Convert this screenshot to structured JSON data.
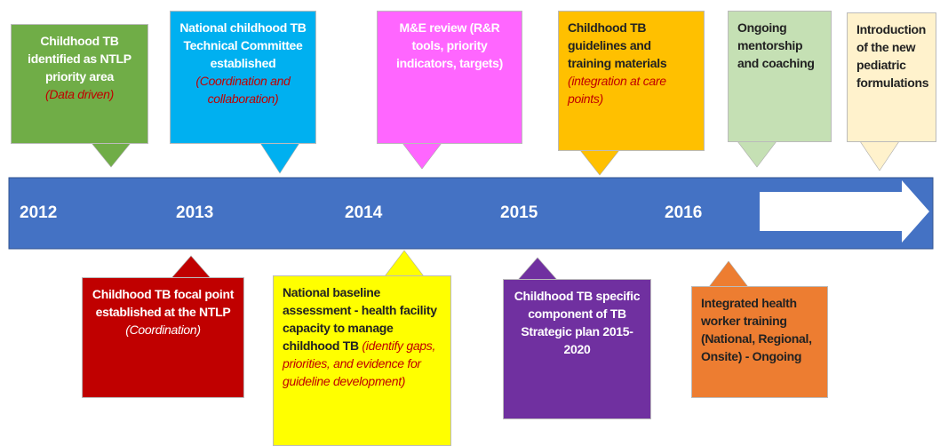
{
  "years": [
    "2012",
    "2013",
    "2014",
    "2015",
    "2016"
  ],
  "top_events": [
    {
      "text": "Childhood TB identified as NTLP priority area",
      "note": "(Data driven)"
    },
    {
      "text": "National childhood TB Technical Committee established",
      "note": "(Coordination and collaboration)"
    },
    {
      "text": "M&E review (R&R tools, priority indicators, targets)"
    },
    {
      "text": "Childhood TB guidelines and training materials",
      "note": "(integration at care points)"
    },
    {
      "text": "Ongoing mentorship and coaching"
    },
    {
      "text": "Introduction of the new pediatric formulations"
    }
  ],
  "bottom_events": [
    {
      "text": "Childhood TB focal point established at the NTLP",
      "note": "(Coordination)"
    },
    {
      "text": "National baseline assessment - health facility capacity to manage childhood TB",
      "note": "(identify gaps, priorities, and evidence for guideline development)"
    },
    {
      "text": "Childhood TB specific component of TB Strategic plan 2015-2020"
    },
    {
      "text": "Integrated health worker training (National, Regional, Onsite) - Ongoing"
    }
  ]
}
